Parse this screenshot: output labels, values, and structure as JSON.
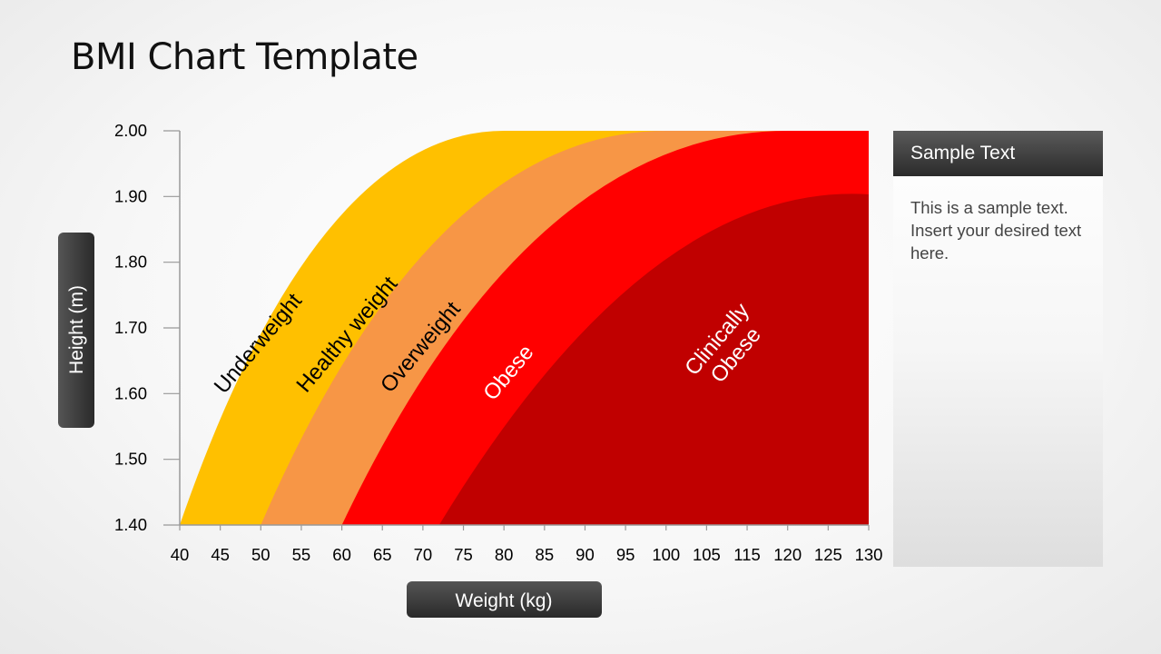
{
  "slide": {
    "title": "BMI Chart Template"
  },
  "side_panel": {
    "header": "Sample Text",
    "body": "This is a sample text. Insert your desired text here."
  },
  "colors": {
    "underweight": "#ffffff",
    "healthy": "#ffc000",
    "overweight": "#f79646",
    "obese": "#ff0000",
    "clinically_obese": "#c00000",
    "axis_label_bg": "#3c3c3c"
  },
  "chart_data": {
    "type": "area",
    "xlabel": "Weight (kg)",
    "ylabel": "Height (m)",
    "x_ticks": [
      "40",
      "45",
      "50",
      "55",
      "60",
      "65",
      "70",
      "75",
      "80",
      "85",
      "90",
      "95",
      "100",
      "105",
      "115",
      "120",
      "125",
      "130"
    ],
    "y_ticks": [
      "1.40",
      "1.50",
      "1.60",
      "1.70",
      "1.80",
      "1.90",
      "2.00"
    ],
    "ylim": [
      1.4,
      2.0
    ],
    "grid": false,
    "series": [
      {
        "name": "Underweight",
        "color": "#ffffff",
        "text_color": "#000000",
        "boundary_weight_at_1_40": 40,
        "boundary_weight_at_2_00": 80
      },
      {
        "name": "Healthy weight",
        "color": "#ffc000",
        "text_color": "#000000",
        "boundary_weight_at_1_40": 50,
        "boundary_weight_at_2_00": 100
      },
      {
        "name": "Overweight",
        "color": "#f79646",
        "text_color": "#000000",
        "boundary_weight_at_1_40": 60,
        "boundary_weight_at_2_00": 120
      },
      {
        "name": "Obese",
        "color": "#ff0000",
        "text_color": "#ffffff",
        "boundary_weight_at_1_40": 72,
        "boundary_weight_at_2_00": 130
      },
      {
        "name": "Clinically\nObese",
        "color": "#c00000",
        "text_color": "#ffffff"
      }
    ]
  }
}
